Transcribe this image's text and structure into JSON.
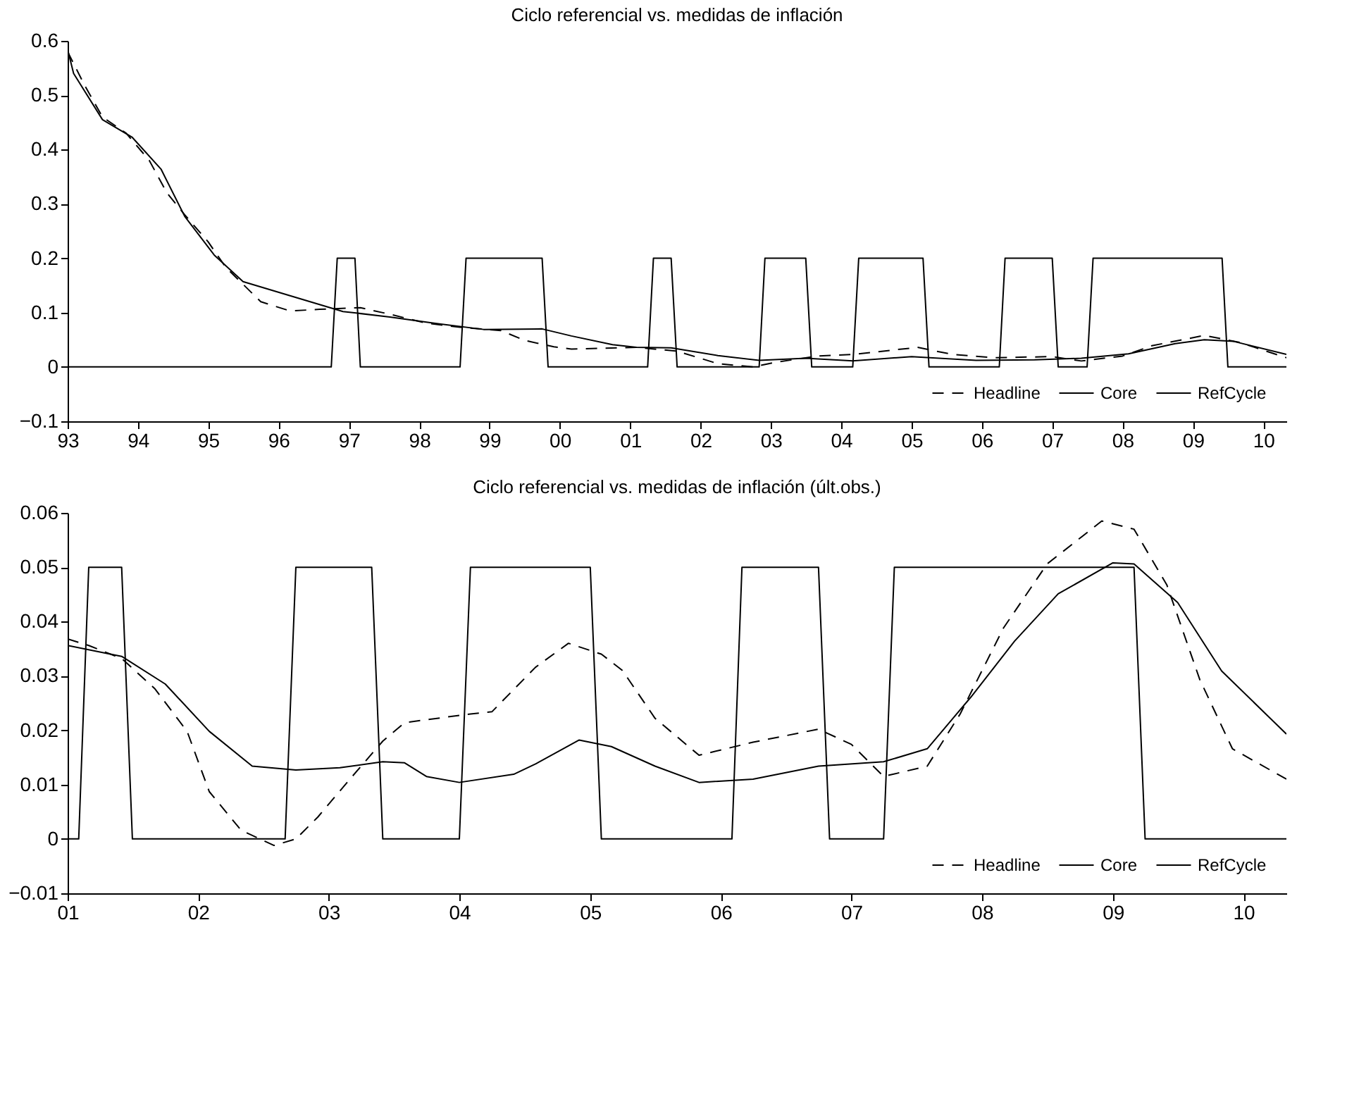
{
  "chart_data": [
    {
      "type": "line",
      "title": "Ciclo referencial vs. medidas de inflación",
      "xlim": [
        "1993-01",
        "2010-05"
      ],
      "xticks": [
        {
          "value": "1993",
          "label": "93"
        },
        {
          "value": "1994",
          "label": "94"
        },
        {
          "value": "1995",
          "label": "95"
        },
        {
          "value": "1996",
          "label": "96"
        },
        {
          "value": "1997",
          "label": "97"
        },
        {
          "value": "1998",
          "label": "98"
        },
        {
          "value": "1999",
          "label": "99"
        },
        {
          "value": "2000",
          "label": "00"
        },
        {
          "value": "2001",
          "label": "01"
        },
        {
          "value": "2002",
          "label": "02"
        },
        {
          "value": "2003",
          "label": "03"
        },
        {
          "value": "2004",
          "label": "04"
        },
        {
          "value": "2005",
          "label": "05"
        },
        {
          "value": "2006",
          "label": "06"
        },
        {
          "value": "2007",
          "label": "07"
        },
        {
          "value": "2008",
          "label": "08"
        },
        {
          "value": "2009",
          "label": "09"
        },
        {
          "value": "2010",
          "label": "10"
        }
      ],
      "ylim": [
        -0.1,
        0.6
      ],
      "yticks": [
        {
          "value": -0.1,
          "label": "−0.1"
        },
        0,
        0.1,
        0.2,
        0.3,
        0.4,
        0.5,
        0.6
      ],
      "grid": false,
      "legend": "bottom right",
      "series": [
        {
          "name": "Headline",
          "color": "#000000",
          "line_style": "dashed",
          "x": [
            "1993-01",
            "1993-04",
            "1993-07",
            "1993-11",
            "1994-03",
            "1994-06",
            "1994-09",
            "1995-01",
            "1995-04",
            "1995-07",
            "1995-10",
            "1996-03",
            "1996-08",
            "1997-03",
            "1997-08",
            "1998-02",
            "1998-08",
            "1999-03",
            "1999-07",
            "1999-12",
            "2000-03",
            "2001-02",
            "2001-09",
            "2002-04",
            "2002-10",
            "2003-02",
            "2003-09",
            "2004-03",
            "2005-02",
            "2005-08",
            "2006-03",
            "2007-01",
            "2007-06",
            "2008-01",
            "2008-06",
            "2009-03",
            "2009-09",
            "2010-05"
          ],
          "values": [
            0.58,
            0.517,
            0.46,
            0.43,
            0.38,
            0.32,
            0.28,
            0.23,
            0.184,
            0.152,
            0.12,
            0.103,
            0.106,
            0.109,
            0.097,
            0.081,
            0.073,
            0.067,
            0.049,
            0.037,
            0.033,
            0.036,
            0.029,
            0.006,
            0.0,
            0.009,
            0.02,
            0.023,
            0.036,
            0.023,
            0.017,
            0.019,
            0.011,
            0.02,
            0.039,
            0.058,
            0.045,
            0.017
          ]
        },
        {
          "name": "Core",
          "color": "#000000",
          "line_style": "solid",
          "x": [
            "1993-01",
            "1993-02",
            "1993-07",
            "1993-12",
            "1994-05",
            "1994-09",
            "1995-02",
            "1995-07",
            "1996-03",
            "1996-12",
            "1997-08",
            "1998-04",
            "1998-12",
            "1999-10",
            "2000-03",
            "2000-10",
            "2001-02",
            "2001-08",
            "2002-04",
            "2002-11",
            "2003-07",
            "2004-03",
            "2005-01",
            "2005-12",
            "2006-10",
            "2007-06",
            "2008-02",
            "2008-10",
            "2009-03",
            "2009-08",
            "2010-05"
          ],
          "values": [
            0.584,
            0.54,
            0.455,
            0.423,
            0.364,
            0.277,
            0.206,
            0.157,
            0.131,
            0.102,
            0.092,
            0.08,
            0.069,
            0.07,
            0.057,
            0.041,
            0.036,
            0.035,
            0.021,
            0.012,
            0.016,
            0.011,
            0.019,
            0.012,
            0.013,
            0.016,
            0.024,
            0.043,
            0.05,
            0.047,
            0.023
          ]
        },
        {
          "name": "RefCycle",
          "color": "#000000",
          "line_style": "solid",
          "x": [
            "1993-01",
            "1996-10",
            "1996-11",
            "1997-02",
            "1997-03",
            "1998-08",
            "1998-09",
            "1999-10",
            "1999-11",
            "2001-04",
            "2001-05",
            "2001-08",
            "2001-09",
            "2002-11",
            "2002-12",
            "2003-07",
            "2003-08",
            "2004-03",
            "2004-04",
            "2005-03",
            "2005-04",
            "2006-04",
            "2006-05",
            "2007-01",
            "2007-02",
            "2007-07",
            "2007-08",
            "2009-06",
            "2009-07",
            "2010-05"
          ],
          "values": [
            0,
            0,
            0.2,
            0.2,
            0,
            0,
            0.2,
            0.2,
            0,
            0,
            0.2,
            0.2,
            0,
            0,
            0.2,
            0.2,
            0,
            0,
            0.2,
            0.2,
            0,
            0,
            0.2,
            0.2,
            0,
            0,
            0.2,
            0.2,
            0,
            0
          ]
        }
      ]
    },
    {
      "type": "line",
      "title": "Ciclo referencial vs. medidas de inflación (últ.obs.)",
      "xlim": [
        "2001-01",
        "2010-05"
      ],
      "xticks": [
        {
          "value": "2001",
          "label": "01"
        },
        {
          "value": "2002",
          "label": "02"
        },
        {
          "value": "2003",
          "label": "03"
        },
        {
          "value": "2004",
          "label": "04"
        },
        {
          "value": "2005",
          "label": "05"
        },
        {
          "value": "2006",
          "label": "06"
        },
        {
          "value": "2007",
          "label": "07"
        },
        {
          "value": "2008",
          "label": "08"
        },
        {
          "value": "2009",
          "label": "09"
        },
        {
          "value": "2010",
          "label": "10"
        }
      ],
      "ylim": [
        -0.01,
        0.06
      ],
      "yticks": [
        {
          "value": -0.01,
          "label": "−0.01"
        },
        0,
        0.01,
        0.02,
        0.03,
        0.04,
        0.05,
        0.06
      ],
      "grid": false,
      "legend": "bottom right",
      "series": [
        {
          "name": "Headline",
          "color": "#000000",
          "line_style": "dashed",
          "x": [
            "2001-01",
            "2001-03",
            "2001-06",
            "2001-09",
            "2001-12",
            "2002-02",
            "2002-05",
            "2002-08",
            "2002-10",
            "2002-12",
            "2003-03",
            "2003-06",
            "2003-08",
            "2004-02",
            "2004-04",
            "2004-08",
            "2004-11",
            "2005-02",
            "2005-04",
            "2005-07",
            "2005-11",
            "2006-04",
            "2006-10",
            "2007-01",
            "2007-04",
            "2007-08",
            "2007-11",
            "2008-03",
            "2008-07",
            "2008-12",
            "2009-03",
            "2009-06",
            "2009-09",
            "2009-12",
            "2010-05"
          ],
          "values": [
            0.0368,
            0.0356,
            0.0332,
            0.0277,
            0.0198,
            0.0087,
            0.0016,
            -0.0012,
            0,
            0.004,
            0.011,
            0.018,
            0.0214,
            0.023,
            0.0234,
            0.0316,
            0.036,
            0.034,
            0.031,
            0.0222,
            0.0154,
            0.0178,
            0.0202,
            0.0174,
            0.0115,
            0.0134,
            0.023,
            0.0388,
            0.0506,
            0.0585,
            0.057,
            0.0467,
            0.0293,
            0.0166,
            0.011
          ]
        },
        {
          "name": "Core",
          "color": "#000000",
          "line_style": "solid",
          "x": [
            "2001-01",
            "2001-06",
            "2001-10",
            "2002-02",
            "2002-06",
            "2002-10",
            "2003-02",
            "2003-06",
            "2003-08",
            "2003-10",
            "2004-01",
            "2004-06",
            "2004-08",
            "2004-12",
            "2005-03",
            "2005-07",
            "2005-11",
            "2006-04",
            "2006-10",
            "2007-04",
            "2007-08",
            "2007-12",
            "2008-04",
            "2008-08",
            "2009-01",
            "2009-03",
            "2009-07",
            "2009-11",
            "2010-05"
          ],
          "values": [
            0.0356,
            0.0336,
            0.0285,
            0.0198,
            0.0134,
            0.0127,
            0.0131,
            0.0142,
            0.014,
            0.0115,
            0.0104,
            0.0119,
            0.0138,
            0.0182,
            0.017,
            0.0134,
            0.0104,
            0.011,
            0.0134,
            0.0142,
            0.0166,
            0.0261,
            0.0364,
            0.0451,
            0.0508,
            0.0506,
            0.0435,
            0.0309,
            0.0193
          ]
        },
        {
          "name": "RefCycle",
          "color": "#000000",
          "line_style": "solid",
          "x": [
            "2001-01",
            "2001-02",
            "2001-03",
            "2001-06",
            "2001-07",
            "2002-09",
            "2002-10",
            "2003-05",
            "2003-06",
            "2004-01",
            "2004-02",
            "2005-01",
            "2005-02",
            "2006-02",
            "2006-03",
            "2006-10",
            "2006-11",
            "2007-04",
            "2007-05",
            "2009-03",
            "2009-04",
            "2010-05"
          ],
          "values": [
            0,
            0,
            0.05,
            0.05,
            0,
            0,
            0.05,
            0.05,
            0,
            0,
            0.05,
            0.05,
            0,
            0,
            0.05,
            0.05,
            0,
            0,
            0.05,
            0.05,
            0,
            0
          ]
        }
      ]
    }
  ]
}
